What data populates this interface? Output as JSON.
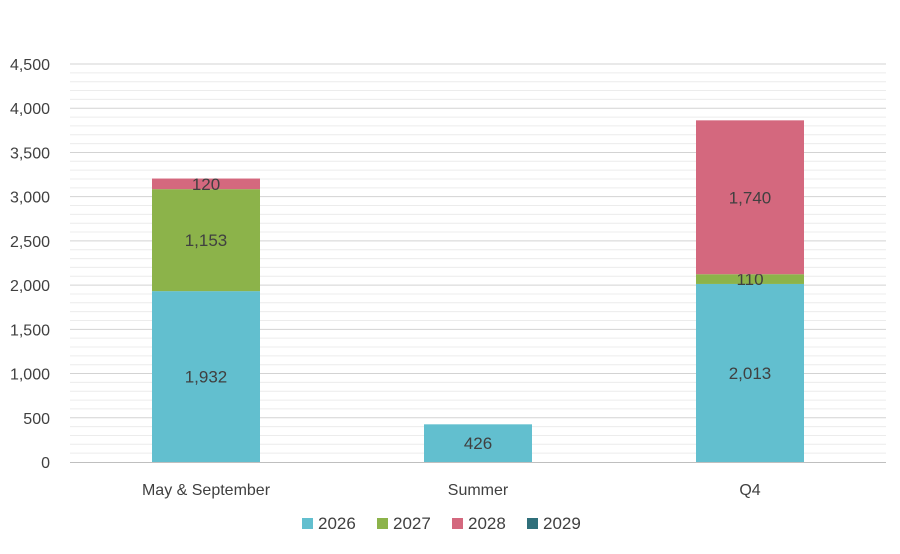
{
  "chart_data": {
    "type": "bar",
    "stacked": true,
    "categories": [
      "May & September",
      "Summer",
      "Q4"
    ],
    "series": [
      {
        "name": "2026",
        "color": "#62bfcf",
        "values": [
          1932,
          426,
          2013
        ],
        "labels": [
          "1,932",
          "426",
          "2,013"
        ]
      },
      {
        "name": "2027",
        "color": "#8cb34a",
        "values": [
          1153,
          0,
          110
        ],
        "labels": [
          "1,153",
          "",
          "110"
        ]
      },
      {
        "name": "2028",
        "color": "#d4687e",
        "values": [
          120,
          0,
          1740
        ],
        "labels": [
          "120",
          "",
          "1,740"
        ]
      },
      {
        "name": "2029",
        "color": "#2f6f7a",
        "values": [
          0,
          0,
          0
        ],
        "labels": [
          "",
          "",
          ""
        ]
      }
    ],
    "y_ticks": [
      0,
      500,
      1000,
      1500,
      2000,
      2500,
      3000,
      3500,
      4000,
      4500
    ],
    "y_tick_labels": [
      "0",
      "500",
      "1,000",
      "1,500",
      "2,000",
      "2,500",
      "3,000",
      "3,500",
      "4,000",
      "4,500"
    ],
    "ylim": [
      0,
      4500
    ],
    "minor_grid_step": 100,
    "legend_position": "bottom",
    "grid": true
  }
}
